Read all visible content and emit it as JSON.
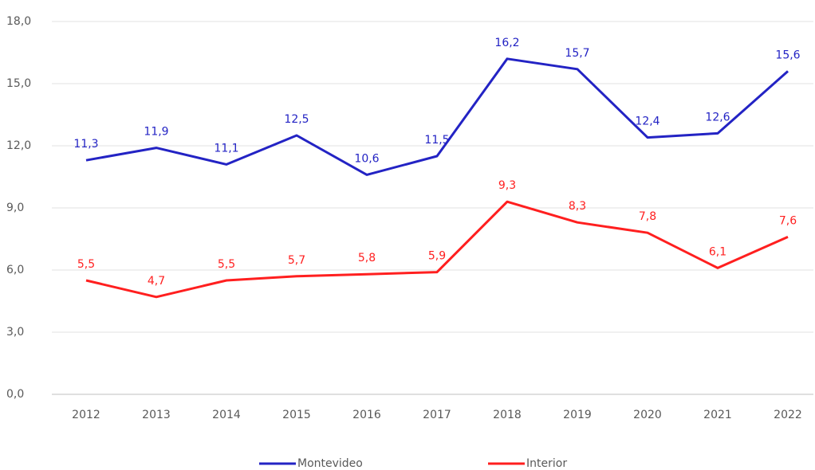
{
  "chart_data": {
    "type": "line",
    "categories": [
      "2012",
      "2013",
      "2014",
      "2015",
      "2016",
      "2017",
      "2018",
      "2019",
      "2020",
      "2021",
      "2022"
    ],
    "series": [
      {
        "name": "Montevideo",
        "color": "#2323c4",
        "values": [
          11.3,
          11.9,
          11.1,
          12.5,
          10.6,
          11.5,
          16.2,
          15.7,
          12.4,
          12.6,
          15.6
        ],
        "value_labels": [
          "11,3",
          "11,9",
          "11,1",
          "12,5",
          "10,6",
          "11,5",
          "16,2",
          "15,7",
          "12,4",
          "12,6",
          "15,6"
        ]
      },
      {
        "name": "Interior",
        "color": "#ff1f1f",
        "values": [
          5.5,
          4.7,
          5.5,
          5.7,
          5.8,
          5.9,
          9.3,
          8.3,
          7.8,
          6.1,
          7.6
        ],
        "value_labels": [
          "5,5",
          "4,7",
          "5,5",
          "5,7",
          "5,8",
          "5,9",
          "9,3",
          "8,3",
          "7,8",
          "6,1",
          "7,6"
        ]
      }
    ],
    "ylim": [
      0,
      18
    ],
    "yticks": [
      {
        "value": 0,
        "label": "0,0"
      },
      {
        "value": 3,
        "label": "3,0"
      },
      {
        "value": 6,
        "label": "6,0"
      },
      {
        "value": 9,
        "label": "9,0"
      },
      {
        "value": 12,
        "label": "12,0"
      },
      {
        "value": 15,
        "label": "15,0"
      },
      {
        "value": 18,
        "label": "18,0"
      }
    ],
    "grid": true,
    "legend": "bottom"
  }
}
